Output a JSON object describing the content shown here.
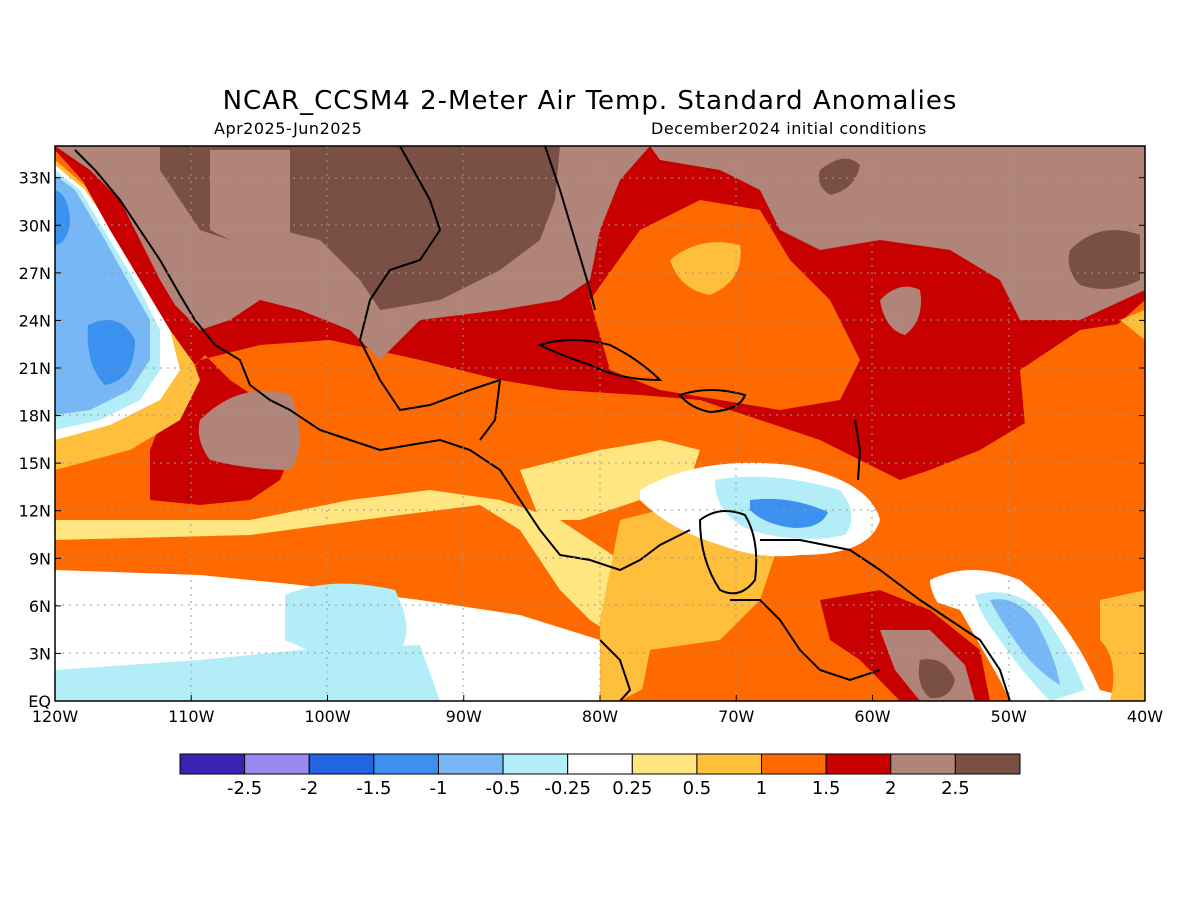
{
  "header": {
    "title": "NCAR_CCSM4 2-Meter Air Temp. Standard Anomalies",
    "period": "Apr2025-Jun2025",
    "init": "December2024 initial conditions"
  },
  "map": {
    "lat_labels": [
      "33N",
      "30N",
      "27N",
      "24N",
      "21N",
      "18N",
      "15N",
      "12N",
      "9N",
      "6N",
      "3N",
      "EQ"
    ],
    "lon_labels": [
      "120W",
      "110W",
      "100W",
      "90W",
      "80W",
      "70W",
      "60W",
      "50W",
      "40W"
    ],
    "lat_values": [
      33,
      30,
      27,
      24,
      21,
      18,
      15,
      12,
      9,
      6,
      3,
      0
    ],
    "lon_values": [
      -120,
      -110,
      -100,
      -90,
      -80,
      -70,
      -60,
      -50,
      -40
    ],
    "extent": {
      "lon": [
        -120,
        -40
      ],
      "lat": [
        0,
        35
      ]
    }
  },
  "legend": {
    "colors": [
      "#3a22b0",
      "#9b87f0",
      "#2166e0",
      "#3b90f0",
      "#78b7f5",
      "#b3eef8",
      "#ffffff",
      "#ffe680",
      "#ffbf3c",
      "#ff6a00",
      "#c80000",
      "#b08478",
      "#7a5045"
    ],
    "labels": [
      "-2.5",
      "-2",
      "-1.5",
      "-1",
      "-0.5",
      "-0.25",
      "0.25",
      "0.5",
      "1",
      "1.5",
      "2",
      "2.5"
    ]
  }
}
